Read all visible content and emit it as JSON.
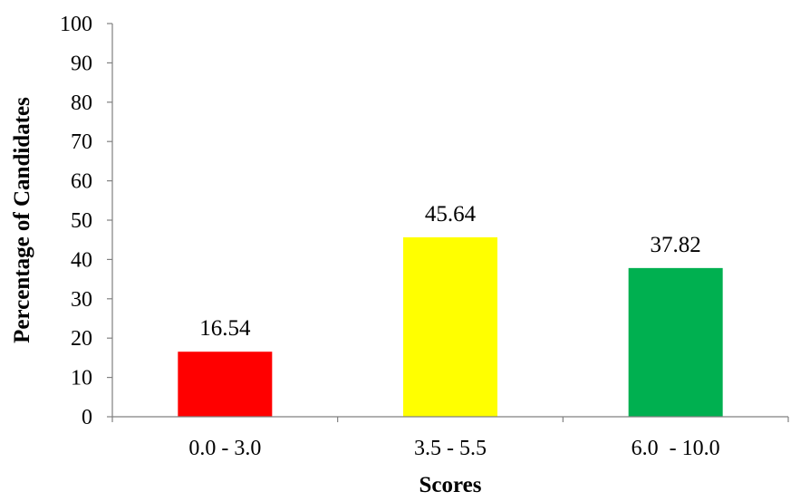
{
  "chart_data": {
    "type": "bar",
    "categories": [
      "0.0 - 3.0",
      "3.5 - 5.5",
      "6.0  - 10.0"
    ],
    "values": [
      16.54,
      45.64,
      37.82
    ],
    "data_labels": [
      "16.54",
      "45.64",
      "37.82"
    ],
    "colors": [
      "#ff0000",
      "#ffff00",
      "#00b050"
    ],
    "xlabel": "Scores",
    "ylabel": "Percentage of Candidates",
    "ylim": [
      0,
      100
    ],
    "yticks": [
      0,
      10,
      20,
      30,
      40,
      50,
      60,
      70,
      80,
      90,
      100
    ],
    "grid": false,
    "legend": "none"
  }
}
